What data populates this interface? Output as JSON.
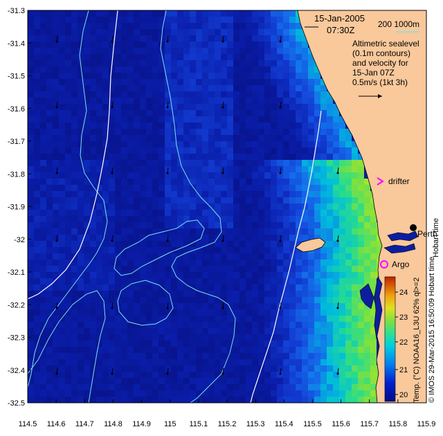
{
  "map": {
    "title_date": "15-Jan-2005",
    "title_time": "07:30Z",
    "isobath_label": "200  1000m",
    "description": [
      "Altimetric sealevel",
      "(0.1m contours)",
      "and velocity for",
      "15-Jan 07Z",
      "0.5m/s (1kt 3h)"
    ],
    "lon_ticks": [
      "114.5",
      "114.6",
      "114.7",
      "114.8",
      "114.9",
      "115",
      "115.1",
      "115.2",
      "115.3",
      "115.4",
      "115.5",
      "115.6",
      "115.7",
      "115.8",
      "115.9"
    ],
    "lat_ticks": [
      "-31.3",
      "-31.4",
      "-31.5",
      "-31.6",
      "-31.7",
      "-31.8",
      "-31.9",
      "-32",
      "-32.1",
      "-32.2",
      "-32.3",
      "-32.4",
      "-32.5"
    ],
    "markers": {
      "drifter": "drifter",
      "argo": "Argo",
      "city": "Perth",
      "city_trunc": "Hobart time"
    },
    "colorbar": {
      "ticks": [
        "24",
        "23",
        "22",
        "21",
        "20"
      ],
      "label": "Temp. (°C) NOAA16_L3U 62% ql>=2",
      "credit": "© IMOS 29-Mar-2015 16:50:09 Hobart time"
    },
    "colors": {
      "land": "#f9c89b",
      "ocean_deep": "#0a1a9a",
      "contour": "#7fe0e6",
      "isobath": "#ffffff",
      "drifter": "#ff00ff",
      "argo": "#ff00ff"
    }
  }
}
